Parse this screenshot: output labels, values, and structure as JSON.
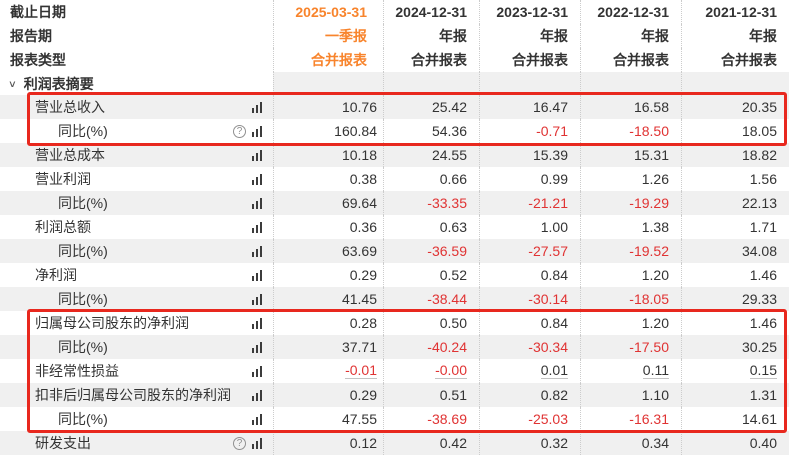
{
  "colors": {
    "accent_orange": "#f8842c",
    "negative_red": "#e03333",
    "highlight_red": "#e8281e",
    "stripe_gray": "#f0f0f0",
    "text_dark": "#333333"
  },
  "icons": {
    "help_glyph": "?",
    "help_name": "circle-question-icon",
    "bar_chart_name": "bar-chart-icon",
    "section_chevron_glyph": "∨",
    "section_chevron_name": "chevron-down-icon"
  },
  "table": {
    "meta_rows": [
      {
        "label": "截止日期",
        "values": [
          "2025-03-31",
          "2024-12-31",
          "2023-12-31",
          "2022-12-31",
          "2021-12-31"
        ]
      },
      {
        "label": "报告期",
        "values": [
          "一季报",
          "年报",
          "年报",
          "年报",
          "年报"
        ]
      },
      {
        "label": "报表类型",
        "values": [
          "合并报表",
          "合并报表",
          "合并报表",
          "合并报表",
          "合并报表"
        ]
      }
    ],
    "section": {
      "title": "利润表摘要"
    },
    "rows": [
      {
        "label": "营业总收入",
        "indent": false,
        "help_icon": false,
        "underline_values": false,
        "values": [
          "10.76",
          "25.42",
          "16.47",
          "16.58",
          "20.35"
        ]
      },
      {
        "label": "同比(%)",
        "indent": true,
        "help_icon": true,
        "underline_values": false,
        "values": [
          "160.84",
          "54.36",
          "-0.71",
          "-18.50",
          "18.05"
        ]
      },
      {
        "label": "营业总成本",
        "indent": false,
        "help_icon": false,
        "underline_values": false,
        "values": [
          "10.18",
          "24.55",
          "15.39",
          "15.31",
          "18.82"
        ]
      },
      {
        "label": "营业利润",
        "indent": false,
        "help_icon": false,
        "underline_values": false,
        "values": [
          "0.38",
          "0.66",
          "0.99",
          "1.26",
          "1.56"
        ]
      },
      {
        "label": "同比(%)",
        "indent": true,
        "help_icon": false,
        "underline_values": false,
        "values": [
          "69.64",
          "-33.35",
          "-21.21",
          "-19.29",
          "22.13"
        ]
      },
      {
        "label": "利润总额",
        "indent": false,
        "help_icon": false,
        "underline_values": false,
        "values": [
          "0.36",
          "0.63",
          "1.00",
          "1.38",
          "1.71"
        ]
      },
      {
        "label": "同比(%)",
        "indent": true,
        "help_icon": false,
        "underline_values": false,
        "values": [
          "63.69",
          "-36.59",
          "-27.57",
          "-19.52",
          "34.08"
        ]
      },
      {
        "label": "净利润",
        "indent": false,
        "help_icon": false,
        "underline_values": false,
        "values": [
          "0.29",
          "0.52",
          "0.84",
          "1.20",
          "1.46"
        ]
      },
      {
        "label": "同比(%)",
        "indent": true,
        "help_icon": false,
        "underline_values": false,
        "values": [
          "41.45",
          "-38.44",
          "-30.14",
          "-18.05",
          "29.33"
        ]
      },
      {
        "label": "归属母公司股东的净利润",
        "indent": false,
        "help_icon": false,
        "underline_values": false,
        "values": [
          "0.28",
          "0.50",
          "0.84",
          "1.20",
          "1.46"
        ]
      },
      {
        "label": "同比(%)",
        "indent": true,
        "help_icon": false,
        "underline_values": false,
        "values": [
          "37.71",
          "-40.24",
          "-30.34",
          "-17.50",
          "30.25"
        ]
      },
      {
        "label": "非经常性损益",
        "indent": false,
        "help_icon": false,
        "underline_values": true,
        "values": [
          "-0.01",
          "-0.00",
          "0.01",
          "0.11",
          "0.15"
        ]
      },
      {
        "label": "扣非后归属母公司股东的净利润",
        "indent": false,
        "help_icon": false,
        "underline_values": false,
        "values": [
          "0.29",
          "0.51",
          "0.82",
          "1.10",
          "1.31"
        ]
      },
      {
        "label": "同比(%)",
        "indent": true,
        "help_icon": false,
        "underline_values": false,
        "values": [
          "47.55",
          "-38.69",
          "-25.03",
          "-16.31",
          "14.61"
        ]
      },
      {
        "label": "研发支出",
        "indent": false,
        "help_icon": true,
        "underline_values": false,
        "values": [
          "0.12",
          "0.42",
          "0.32",
          "0.34",
          "0.40"
        ]
      }
    ]
  }
}
